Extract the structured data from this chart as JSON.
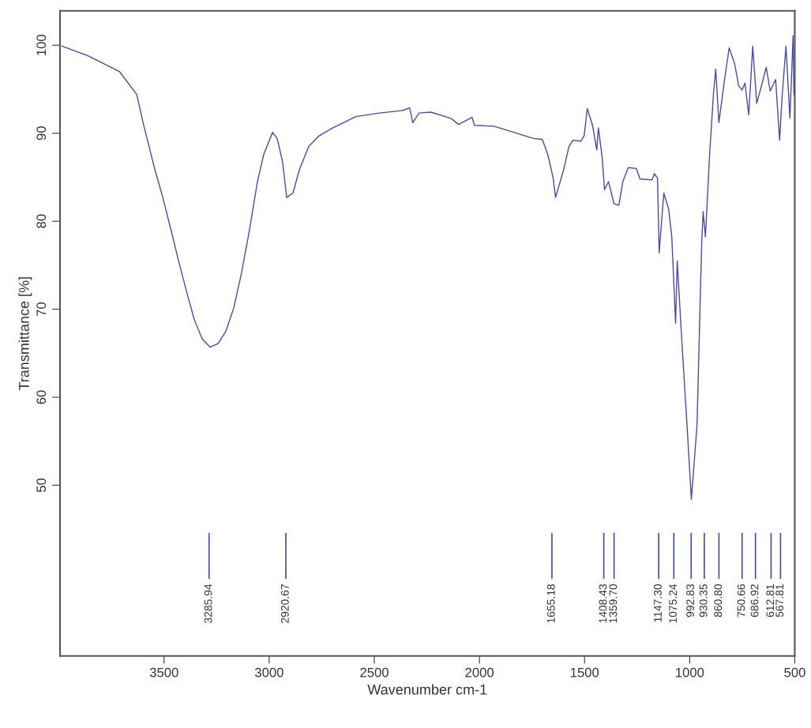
{
  "chart_data": {
    "type": "line",
    "xlabel": "Wavenumber cm-1",
    "ylabel": "Transmittance [%]",
    "xlim": [
      3995,
      500
    ],
    "ylim": [
      30.6,
      103.9
    ],
    "xticks": [
      3500,
      3000,
      2500,
      2000,
      1500,
      1000,
      500
    ],
    "yticks": [
      50,
      60,
      70,
      80,
      90,
      100
    ],
    "grid": false,
    "marker": "none",
    "line_style": "solid",
    "series": [
      {
        "color": "#4a4aa8",
        "x": [
          3986,
          3862,
          3712,
          3630,
          3600,
          3581,
          3543,
          3506,
          3468,
          3431,
          3393,
          3356,
          3318,
          3281,
          3243,
          3206,
          3168,
          3131,
          3093,
          3056,
          3026,
          2984,
          2962,
          2936,
          2917,
          2887,
          2857,
          2812,
          2763,
          2699,
          2587,
          2474,
          2362,
          2332,
          2317,
          2287,
          2231,
          2136,
          2099,
          2035,
          2024,
          1931,
          1836,
          1743,
          1701,
          1675,
          1649,
          1638,
          1600,
          1574,
          1555,
          1518,
          1502,
          1487,
          1461,
          1442,
          1434,
          1416,
          1405,
          1386,
          1360,
          1337,
          1318,
          1292,
          1254,
          1236,
          1179,
          1168,
          1153,
          1145,
          1123,
          1100,
          1085,
          1067,
          1059,
          1040,
          1010,
          992,
          965,
          943,
          936,
          925,
          906,
          887,
          876,
          861,
          834,
          812,
          786,
          767,
          750.66,
          737,
          719,
          700,
          681,
          655,
          636,
          617,
          591,
          572,
          561,
          542,
          523,
          508,
          504
        ],
        "values": [
          99.9,
          98.8,
          97,
          94.4,
          91.2,
          89.4,
          85.8,
          82.7,
          79.1,
          75.5,
          72,
          68.8,
          66.6,
          65.7,
          66.1,
          67.5,
          70.2,
          74.2,
          79.1,
          84.5,
          87.6,
          90.1,
          89.4,
          86.7,
          82.7,
          83.2,
          85.8,
          88.5,
          89.7,
          90.6,
          91.9,
          92.3,
          92.6,
          92.9,
          91.2,
          92.3,
          92.4,
          91.7,
          91,
          91.8,
          90.9,
          90.8,
          90.1,
          89.4,
          89.3,
          87.6,
          84.9,
          82.7,
          85.8,
          88.5,
          89.2,
          89.1,
          89.7,
          92.8,
          90.8,
          88.1,
          90.6,
          87.2,
          83.6,
          84.5,
          82,
          81.8,
          84.5,
          86.1,
          86,
          84.8,
          84.7,
          85.4,
          84.9,
          76.4,
          83.2,
          81.4,
          78.2,
          68.4,
          75.5,
          67.5,
          55.8,
          48.4,
          56.8,
          77.3,
          81.1,
          78.2,
          87.2,
          94.4,
          97.3,
          91.2,
          96.1,
          99.7,
          97.9,
          95.4,
          94.9,
          95.7,
          92.1,
          99.9,
          93.4,
          95.7,
          97.5,
          94.8,
          96.1,
          89.2,
          93.9,
          99.9,
          91.7,
          101.1,
          94.4
        ]
      }
    ],
    "annotations": [
      {
        "text": "3285.94",
        "x": 3285.94
      },
      {
        "text": "2920.67",
        "x": 2920.67
      },
      {
        "text": "1655.18",
        "x": 1655.18
      },
      {
        "text": "1408.43",
        "x": 1408.43
      },
      {
        "text": "1359.70",
        "x": 1359.7
      },
      {
        "text": "1147.30",
        "x": 1147.3
      },
      {
        "text": "1075.24",
        "x": 1075.24
      },
      {
        "text": "992.83",
        "x": 992.83
      },
      {
        "text": "930.35",
        "x": 930.35
      },
      {
        "text": "860.80",
        "x": 860.8
      },
      {
        "text": "750.66",
        "x": 750.66
      },
      {
        "text": "686.92",
        "x": 686.92
      },
      {
        "text": "612.81",
        "x": 612.81
      },
      {
        "text": "567.81",
        "x": 567.81
      }
    ]
  }
}
